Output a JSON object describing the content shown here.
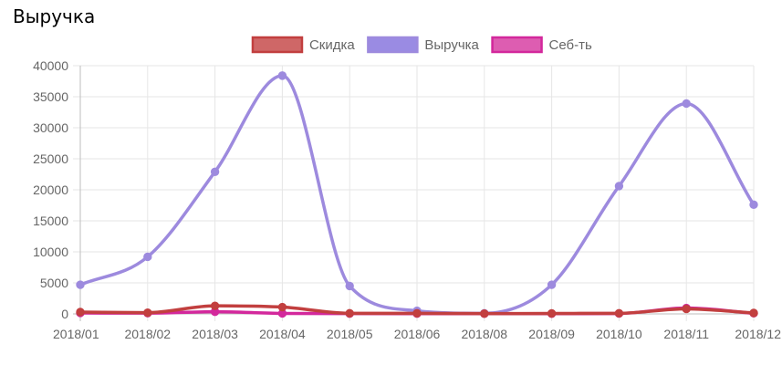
{
  "page": {
    "title": "Выручка"
  },
  "chart_data": {
    "type": "line",
    "title": "",
    "xlabel": "",
    "ylabel": "",
    "categories": [
      "2018/01",
      "2018/02",
      "2018/03",
      "2018/04",
      "2018/05",
      "2018/06",
      "2018/08",
      "2018/09",
      "2018/10",
      "2018/11",
      "2018/12"
    ],
    "ylim": [
      0,
      40000
    ],
    "yticks": [
      0,
      5000,
      10000,
      15000,
      20000,
      25000,
      30000,
      35000,
      40000
    ],
    "grid": true,
    "legend_position": "top",
    "series": [
      {
        "name": "Скидка",
        "line_color": "#c23f3f",
        "fill_color": "#cf6767",
        "values": [
          300,
          200,
          1300,
          1100,
          100,
          100,
          50,
          80,
          100,
          800,
          150
        ]
      },
      {
        "name": "Выручка",
        "line_color": "#9d8ade",
        "fill_color": "#9a8be3",
        "values": [
          4700,
          9200,
          22900,
          38400,
          4500,
          500,
          100,
          4700,
          20600,
          33900,
          17600
        ]
      },
      {
        "name": "Себ-ть",
        "line_color": "#d3289c",
        "fill_color": "#dd5db1",
        "values": [
          150,
          120,
          350,
          80,
          50,
          40,
          30,
          30,
          60,
          950,
          100
        ]
      }
    ]
  }
}
